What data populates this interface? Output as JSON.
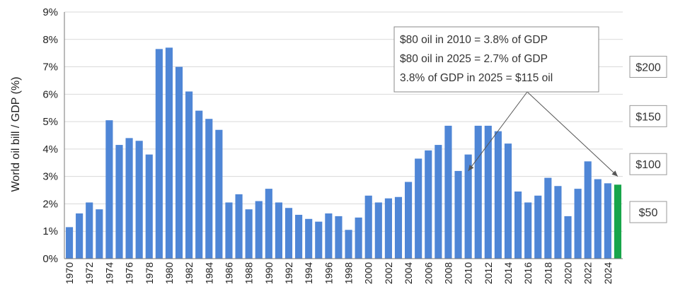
{
  "chart_data": {
    "type": "bar",
    "ylabel": "World oil bill / GDP (%)",
    "xlabel": "",
    "ylim": [
      0,
      9
    ],
    "yticks": [
      "0%",
      "1%",
      "2%",
      "3%",
      "4%",
      "5%",
      "6%",
      "7%",
      "8%",
      "9%"
    ],
    "categories": [
      "1970",
      "1971",
      "1972",
      "1973",
      "1974",
      "1975",
      "1976",
      "1977",
      "1978",
      "1979",
      "1980",
      "1981",
      "1982",
      "1983",
      "1984",
      "1985",
      "1986",
      "1987",
      "1988",
      "1989",
      "1990",
      "1991",
      "1992",
      "1993",
      "1994",
      "1995",
      "1996",
      "1997",
      "1998",
      "1999",
      "2000",
      "2001",
      "2002",
      "2003",
      "2004",
      "2005",
      "2006",
      "2007",
      "2008",
      "2009",
      "2010",
      "2011",
      "2012",
      "2013",
      "2014",
      "2015",
      "2016",
      "2017",
      "2018",
      "2019",
      "2020",
      "2021",
      "2022",
      "2023",
      "2024",
      "2025"
    ],
    "xtick_labels": [
      "1970",
      "1972",
      "1974",
      "1976",
      "1978",
      "1980",
      "1982",
      "1984",
      "1986",
      "1988",
      "1990",
      "1992",
      "1994",
      "1996",
      "1998",
      "2000",
      "2002",
      "2004",
      "2006",
      "2008",
      "2010",
      "2012",
      "2014",
      "2016",
      "2018",
      "2020",
      "2022",
      "2024"
    ],
    "values": [
      1.15,
      1.65,
      2.05,
      1.8,
      5.05,
      4.15,
      4.4,
      4.3,
      3.8,
      7.65,
      7.7,
      7.0,
      6.1,
      5.4,
      5.1,
      4.7,
      2.05,
      2.35,
      1.8,
      2.1,
      2.55,
      2.05,
      1.85,
      1.6,
      1.45,
      1.35,
      1.65,
      1.55,
      1.05,
      1.5,
      2.3,
      2.05,
      2.2,
      2.25,
      2.8,
      3.65,
      3.95,
      4.15,
      4.85,
      3.2,
      3.8,
      4.85,
      4.85,
      4.65,
      4.2,
      2.45,
      2.05,
      2.3,
      2.95,
      2.65,
      1.55,
      2.55,
      3.55,
      2.9,
      2.75,
      2.7
    ],
    "colors": {
      "bar": "#4F86D6",
      "highlight": "#18A54A",
      "grid": "#D9D9D9",
      "axis": "#777777"
    },
    "highlight_category": "2025",
    "grid": true,
    "annotation": {
      "lines": [
        "$80 oil in 2010 = 3.8% of GDP",
        "$80 oil in 2025 = 2.7% of GDP",
        "3.8% of GDP in 2025 = $115 oil"
      ],
      "arrow_targets": [
        {
          "category": "2010",
          "value": 3.2
        },
        {
          "category": "2025",
          "value": 3.0
        }
      ]
    },
    "price_labels": [
      {
        "label": "$200",
        "value": 7.0
      },
      {
        "label": "$150",
        "value": 5.2
      },
      {
        "label": "$100",
        "value": 3.45
      },
      {
        "label": "$50",
        "value": 1.7
      }
    ]
  }
}
